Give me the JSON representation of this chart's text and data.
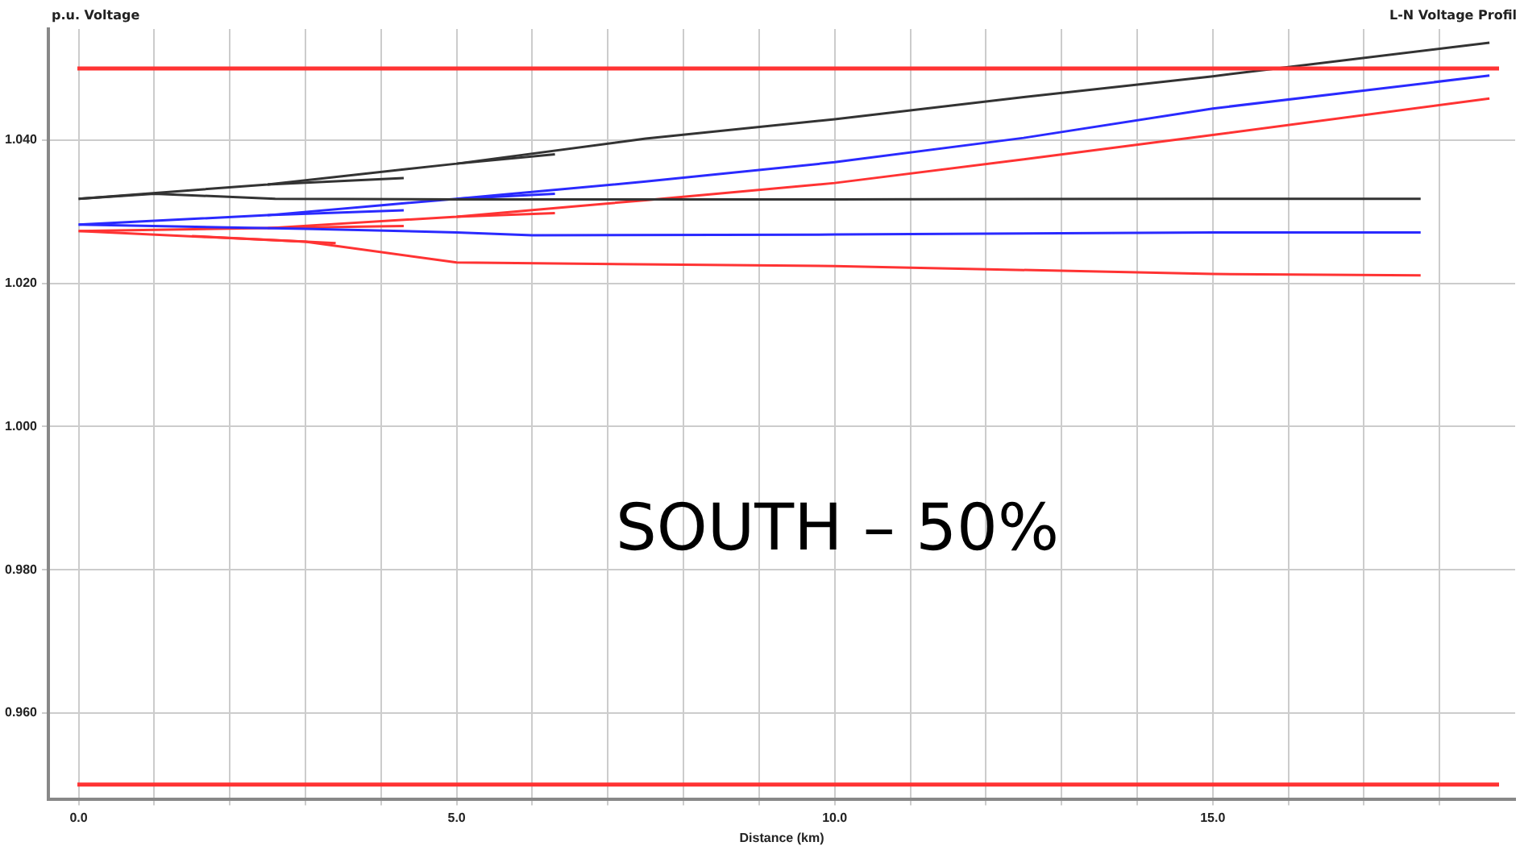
{
  "chart_data": {
    "type": "line",
    "title": "L-N Voltage Profil",
    "xlabel": "Distance (km)",
    "ylabel": "p.u. Voltage",
    "annotations": [
      "SOUTH – 50%"
    ],
    "xlim": [
      -0.4,
      19.0
    ],
    "ylim": [
      0.948,
      1.0555
    ],
    "xticks": [
      {
        "value": 0,
        "label": "0.0"
      },
      {
        "value": 1,
        "label": null
      },
      {
        "value": 2,
        "label": null
      },
      {
        "value": 3,
        "label": null
      },
      {
        "value": 4,
        "label": null
      },
      {
        "value": 5,
        "label": "5.0"
      },
      {
        "value": 6,
        "label": null
      },
      {
        "value": 7,
        "label": null
      },
      {
        "value": 8,
        "label": null
      },
      {
        "value": 9,
        "label": null
      },
      {
        "value": 10,
        "label": "10.0"
      },
      {
        "value": 11,
        "label": null
      },
      {
        "value": 12,
        "label": null
      },
      {
        "value": 13,
        "label": null
      },
      {
        "value": 14,
        "label": null
      },
      {
        "value": 15,
        "label": "15.0"
      },
      {
        "value": 16,
        "label": null
      },
      {
        "value": 17,
        "label": null
      },
      {
        "value": 18,
        "label": null
      }
    ],
    "yticks": [
      {
        "value": 0.96,
        "label": "0.960"
      },
      {
        "value": 0.98,
        "label": "0.980"
      },
      {
        "value": 1.0,
        "label": "1.000"
      },
      {
        "value": 1.02,
        "label": "1.020"
      },
      {
        "value": 1.04,
        "label": "1.040"
      }
    ],
    "grid": true,
    "marker": "none",
    "line_style": "solid",
    "ref_lines": [
      {
        "axis": "y",
        "value": 1.05,
        "label": null,
        "color": "#ff3333"
      },
      {
        "axis": "y",
        "value": 0.95,
        "label": null,
        "color": "#ff3333"
      }
    ],
    "series": [
      {
        "color": "#333333",
        "x": [
          0,
          2.5,
          5,
          7.5,
          10,
          12.5,
          15,
          18.66
        ],
        "values": [
          1.0318,
          1.0338,
          1.0367,
          1.0402,
          1.0429,
          1.046,
          1.0489,
          1.0536
        ]
      },
      {
        "color": "#333333",
        "x": [
          0,
          1,
          2.6,
          5,
          10,
          15,
          17.75
        ],
        "values": [
          1.0318,
          1.0325,
          1.0318,
          1.0317,
          1.0317,
          1.0318,
          1.0318
        ]
      },
      {
        "color": "#333333",
        "x": [
          2.5,
          4.3
        ],
        "values": [
          1.0338,
          1.0347
        ]
      },
      {
        "color": "#333333",
        "x": [
          5,
          6.3
        ],
        "values": [
          1.0367,
          1.038
        ]
      },
      {
        "color": "#2a2aff",
        "x": [
          0,
          2.5,
          5,
          7.5,
          10,
          12.5,
          15,
          18.66
        ],
        "values": [
          1.0282,
          1.0295,
          1.0318,
          1.0342,
          1.0369,
          1.0403,
          1.0444,
          1.049
        ]
      },
      {
        "color": "#2a2aff",
        "x": [
          0,
          3,
          5,
          6,
          10,
          15,
          17.75
        ],
        "values": [
          1.0282,
          1.0276,
          1.0271,
          1.0267,
          1.0268,
          1.0271,
          1.0271
        ]
      },
      {
        "color": "#2a2aff",
        "x": [
          2.5,
          4.3
        ],
        "values": [
          1.0295,
          1.0302
        ]
      },
      {
        "color": "#2a2aff",
        "x": [
          5,
          6.3
        ],
        "values": [
          1.0318,
          1.0325
        ]
      },
      {
        "color": "#ff3333",
        "x": [
          0,
          2.5,
          5,
          7.5,
          10,
          12.5,
          15,
          18.66
        ],
        "values": [
          1.0273,
          1.0277,
          1.0293,
          1.0316,
          1.034,
          1.0373,
          1.0407,
          1.0458
        ]
      },
      {
        "color": "#ff3333",
        "x": [
          0,
          3,
          5,
          10,
          15,
          17.75
        ],
        "values": [
          1.0273,
          1.0258,
          1.0229,
          1.0224,
          1.0213,
          1.0211
        ]
      },
      {
        "color": "#ff3333",
        "x": [
          2.5,
          4.3
        ],
        "values": [
          1.0277,
          1.028
        ]
      },
      {
        "color": "#ff3333",
        "x": [
          1.5,
          3.4
        ],
        "values": [
          1.0266,
          1.0256
        ]
      },
      {
        "color": "#ff3333",
        "x": [
          5,
          6.3
        ],
        "values": [
          1.0293,
          1.0298
        ]
      }
    ]
  }
}
